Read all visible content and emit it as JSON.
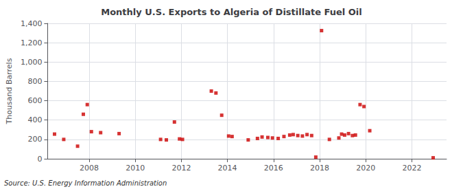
{
  "chart_data": {
    "type": "scatter",
    "title": "Monthly U.S. Exports to Algeria of Distillate Fuel Oil",
    "ylabel": "Thousand Barrels",
    "annotations": [
      "Source: U.S. Energy Information Administration"
    ],
    "x": [
      2006.5,
      2006.9,
      2007.5,
      2007.75,
      2007.92,
      2008.1,
      2008.5,
      2009.3,
      2011.1,
      2011.35,
      2011.7,
      2011.92,
      2012.05,
      2013.3,
      2013.5,
      2013.75,
      2014.05,
      2014.2,
      2014.9,
      2015.3,
      2015.5,
      2015.75,
      2015.95,
      2016.2,
      2016.45,
      2016.7,
      2016.85,
      2017.05,
      2017.25,
      2017.45,
      2017.65,
      2017.83,
      2018.08,
      2018.42,
      2018.83,
      2018.95,
      2019.08,
      2019.25,
      2019.42,
      2019.55,
      2019.75,
      2019.92,
      2020.17,
      2022.92
    ],
    "values": [
      255,
      200,
      130,
      460,
      560,
      280,
      270,
      260,
      200,
      195,
      380,
      205,
      200,
      700,
      680,
      450,
      235,
      230,
      195,
      210,
      225,
      220,
      215,
      210,
      230,
      245,
      250,
      240,
      235,
      250,
      240,
      17,
      1325,
      200,
      215,
      255,
      245,
      260,
      240,
      245,
      560,
      540,
      290,
      10
    ],
    "color": "#cc0000",
    "marker": "square",
    "xlim": [
      2006.2,
      2023.5
    ],
    "xticks": [
      2008,
      2010,
      2012,
      2014,
      2016,
      2018,
      2020,
      2022
    ],
    "ylim": [
      0,
      1400
    ],
    "yticks": [
      0,
      200,
      400,
      600,
      800,
      {
        "value": 1000,
        "label": "1,000"
      },
      {
        "value": 1200,
        "label": "1,200"
      },
      {
        "value": 1400,
        "label": "1,400"
      }
    ],
    "grid": true
  }
}
